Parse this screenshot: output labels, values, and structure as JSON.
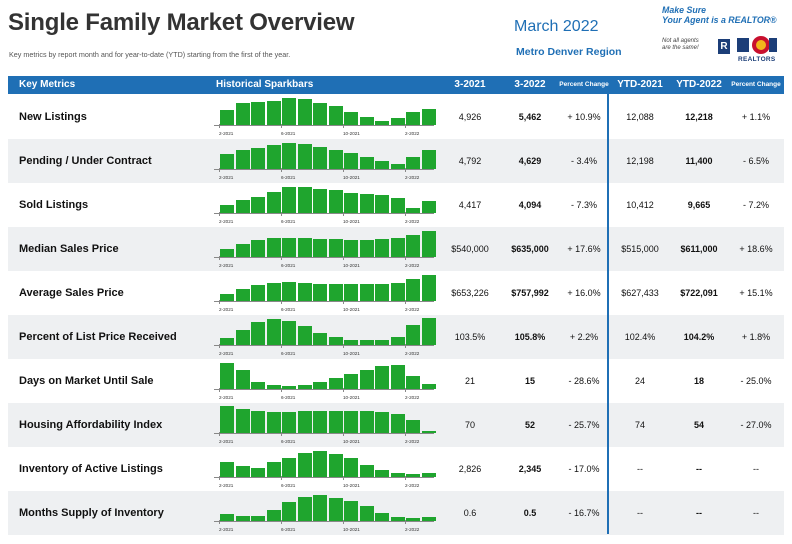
{
  "header": {
    "title": "Single Family Market Overview",
    "subtitle": "Key metrics by report month and for year-to-date (YTD) starting from the first of the year.",
    "report_month": "March 2022",
    "region": "Metro Denver Region",
    "realtor_slogan_1": "Make Sure",
    "realtor_slogan_2": "Your Agent is a REALTOR®",
    "not_all_1": "Not all agents",
    "not_all_2": "are the same!",
    "r_logo": "R",
    "realtors_label": "REALTORS"
  },
  "columns": {
    "metric": "Key Metrics",
    "spark": "Historical Sparkbars",
    "c1": "3-2021",
    "c2": "3-2022",
    "c3": "Percent Change",
    "c4": "YTD-2021",
    "c5": "YTD-2022",
    "c6": "Percent Change"
  },
  "tick_labels": [
    "2-2021",
    "6-2021",
    "10-2021",
    "2-2022"
  ],
  "colors": {
    "accent": "#1f6fb5",
    "bar": "#1fa52e",
    "row_shade": "#eef0f2"
  },
  "rows": [
    {
      "label": "New Listings",
      "v1": "4,926",
      "v2": "5,462",
      "pct": "+ 10.9%",
      "y1": "12,088",
      "y2": "12,218",
      "ypct": "+ 1.1%",
      "bars": [
        0.55,
        0.8,
        0.85,
        0.9,
        1.0,
        0.95,
        0.8,
        0.7,
        0.5,
        0.3,
        0.15,
        0.25,
        0.5,
        0.6
      ]
    },
    {
      "label": "Pending / Under Contract",
      "v1": "4,792",
      "v2": "4,629",
      "pct": "- 3.4%",
      "y1": "12,198",
      "y2": "11,400",
      "ypct": "- 6.5%",
      "bars": [
        0.55,
        0.72,
        0.78,
        0.88,
        0.95,
        0.92,
        0.8,
        0.72,
        0.6,
        0.45,
        0.3,
        0.2,
        0.45,
        0.72
      ]
    },
    {
      "label": "Sold Listings",
      "v1": "4,417",
      "v2": "4,094",
      "pct": "- 7.3%",
      "y1": "10,412",
      "y2": "9,665",
      "ypct": "- 7.2%",
      "bars": [
        0.3,
        0.5,
        0.6,
        0.78,
        0.95,
        0.95,
        0.9,
        0.85,
        0.75,
        0.7,
        0.68,
        0.55,
        0.2,
        0.45
      ]
    },
    {
      "label": "Median Sales Price",
      "v1": "$540,000",
      "v2": "$635,000",
      "pct": "+ 17.6%",
      "y1": "$515,000",
      "y2": "$611,000",
      "ypct": "+ 18.6%",
      "bars": [
        0.3,
        0.5,
        0.62,
        0.7,
        0.72,
        0.7,
        0.68,
        0.66,
        0.64,
        0.64,
        0.66,
        0.7,
        0.82,
        0.95
      ]
    },
    {
      "label": "Average Sales Price",
      "v1": "$653,226",
      "v2": "$757,992",
      "pct": "+ 16.0%",
      "y1": "$627,433",
      "y2": "$722,091",
      "ypct": "+ 15.1%",
      "bars": [
        0.25,
        0.45,
        0.58,
        0.68,
        0.72,
        0.68,
        0.64,
        0.62,
        0.62,
        0.62,
        0.64,
        0.68,
        0.8,
        0.95
      ]
    },
    {
      "label": "Percent of List Price Received",
      "v1": "103.5%",
      "v2": "105.8%",
      "pct": "+ 2.2%",
      "y1": "102.4%",
      "y2": "104.2%",
      "ypct": "+ 1.8%",
      "bars": [
        0.25,
        0.55,
        0.85,
        0.95,
        0.9,
        0.7,
        0.45,
        0.3,
        0.2,
        0.18,
        0.2,
        0.3,
        0.75,
        1.0
      ]
    },
    {
      "label": "Days on Market Until Sale",
      "v1": "21",
      "v2": "15",
      "pct": "- 28.6%",
      "y1": "24",
      "y2": "18",
      "ypct": "- 25.0%",
      "bars": [
        0.95,
        0.7,
        0.25,
        0.15,
        0.12,
        0.15,
        0.25,
        0.4,
        0.55,
        0.7,
        0.85,
        0.9,
        0.5,
        0.2
      ]
    },
    {
      "label": "Housing Affordability Index",
      "v1": "70",
      "v2": "52",
      "pct": "- 25.7%",
      "y1": "74",
      "y2": "54",
      "ypct": "- 27.0%",
      "bars": [
        1.0,
        0.9,
        0.8,
        0.78,
        0.78,
        0.8,
        0.82,
        0.82,
        0.82,
        0.8,
        0.76,
        0.7,
        0.5,
        0.08
      ]
    },
    {
      "label": "Inventory of Active Listings",
      "v1": "2,826",
      "v2": "2,345",
      "pct": "- 17.0%",
      "y1": "--",
      "y2": "--",
      "ypct": "--",
      "bars": [
        0.55,
        0.4,
        0.35,
        0.55,
        0.72,
        0.9,
        0.95,
        0.85,
        0.7,
        0.45,
        0.25,
        0.15,
        0.1,
        0.15
      ]
    },
    {
      "label": "Months Supply of Inventory",
      "v1": "0.6",
      "v2": "0.5",
      "pct": "- 16.7%",
      "y1": "--",
      "y2": "--",
      "ypct": "--",
      "bars": [
        0.25,
        0.2,
        0.2,
        0.4,
        0.7,
        0.9,
        0.95,
        0.85,
        0.75,
        0.55,
        0.3,
        0.15,
        0.1,
        0.15
      ]
    }
  ]
}
